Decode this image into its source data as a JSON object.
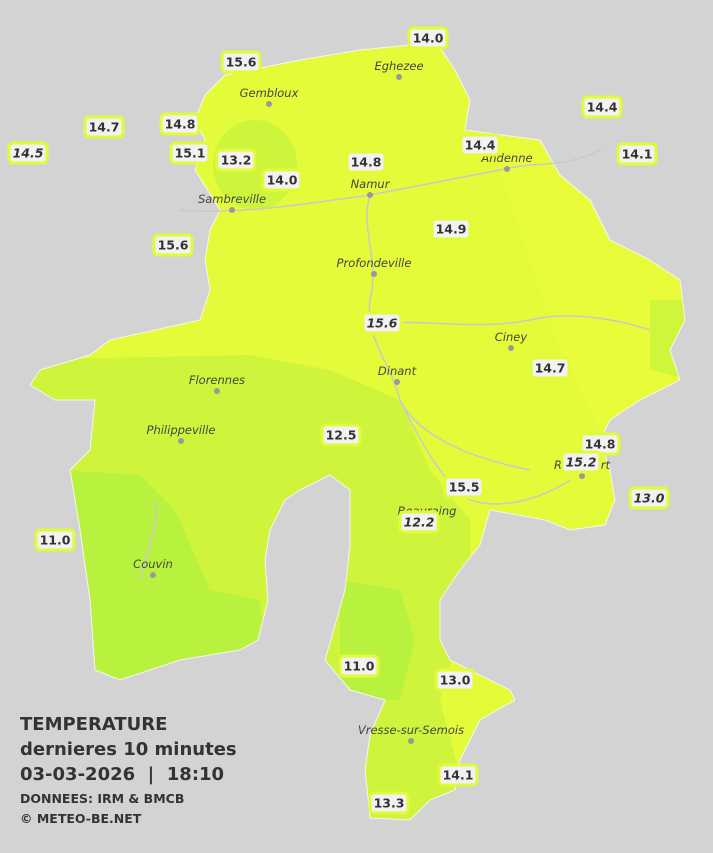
{
  "legend": {
    "title": "TEMPERATURE",
    "subtitle": "dernieres 10 minutes",
    "datetime": "03-03-2026  |  18:10",
    "source": "DONNEES: IRM & BMCB",
    "copyright": "© METEO-BE.NET"
  },
  "towns": [
    "Eghezee",
    "Gembloux",
    "Andenne",
    "Namur",
    "Sambreville",
    "Profondeville",
    "Ciney",
    "Dinant",
    "Florennes",
    "Philippeville",
    "Rochefort",
    "Beauraing",
    "Couvin",
    "Vresse-sur-Semois"
  ],
  "stations": [
    {
      "label": "14.0"
    },
    {
      "label": "15.6"
    },
    {
      "label": "14.7"
    },
    {
      "label": "14.8"
    },
    {
      "label": "14.5",
      "italic": true
    },
    {
      "label": "15.1"
    },
    {
      "label": "13.2"
    },
    {
      "label": "14.0"
    },
    {
      "label": "14.8"
    },
    {
      "label": "14.4"
    },
    {
      "label": "14.4"
    },
    {
      "label": "14.1"
    },
    {
      "label": "15.6"
    },
    {
      "label": "14.9"
    },
    {
      "label": "15.6",
      "italic": true
    },
    {
      "label": "14.7"
    },
    {
      "label": "12.5"
    },
    {
      "label": "14.8"
    },
    {
      "label": "15.2",
      "italic": true
    },
    {
      "label": "13.0",
      "italic": true
    },
    {
      "label": "15.5"
    },
    {
      "label": "12.2",
      "italic": true
    },
    {
      "label": "11.0"
    },
    {
      "label": "11.0"
    },
    {
      "label": "13.0"
    },
    {
      "label": "14.1"
    },
    {
      "label": "13.3"
    }
  ]
}
